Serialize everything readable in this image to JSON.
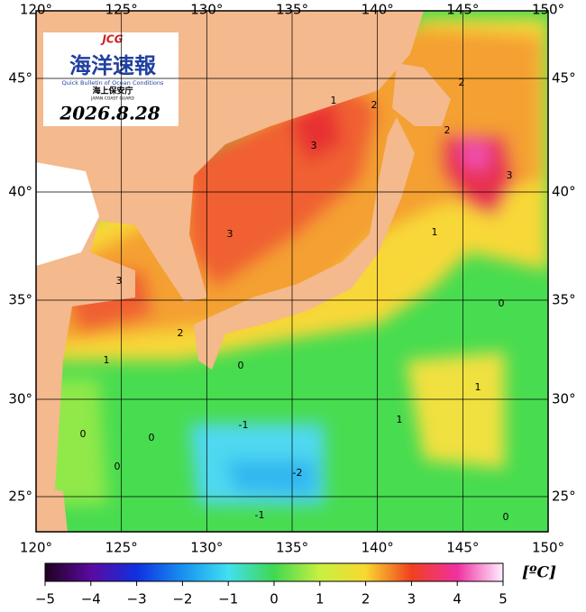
{
  "header": {
    "logo_mark": "JCG",
    "title_jp": "海洋速報",
    "subtitle_en": "Quick Bulletin of Ocean Conditions",
    "agency_jp": "海上保安庁",
    "agency_en": "JAPAN COAST GUARD",
    "date": "2026.8.28"
  },
  "map": {
    "lon_labels": [
      "120°",
      "125°",
      "130°",
      "135°",
      "140°",
      "145°",
      "150°"
    ],
    "lat_labels": [
      "45°",
      "40°",
      "35°",
      "30°",
      "25°"
    ],
    "contour_labels": [
      "3",
      "3",
      "3",
      "3",
      "2",
      "2",
      "2",
      "2",
      "1",
      "1",
      "1",
      "1",
      "1",
      "0",
      "0",
      "0",
      "0",
      "0",
      "0",
      "-1",
      "-1",
      "-2"
    ]
  },
  "colorbar": {
    "unit": "[ºC]",
    "ticks": [
      "−5",
      "−4",
      "−3",
      "−2",
      "−1",
      "0",
      "1",
      "2",
      "3",
      "4",
      "5"
    ]
  }
}
